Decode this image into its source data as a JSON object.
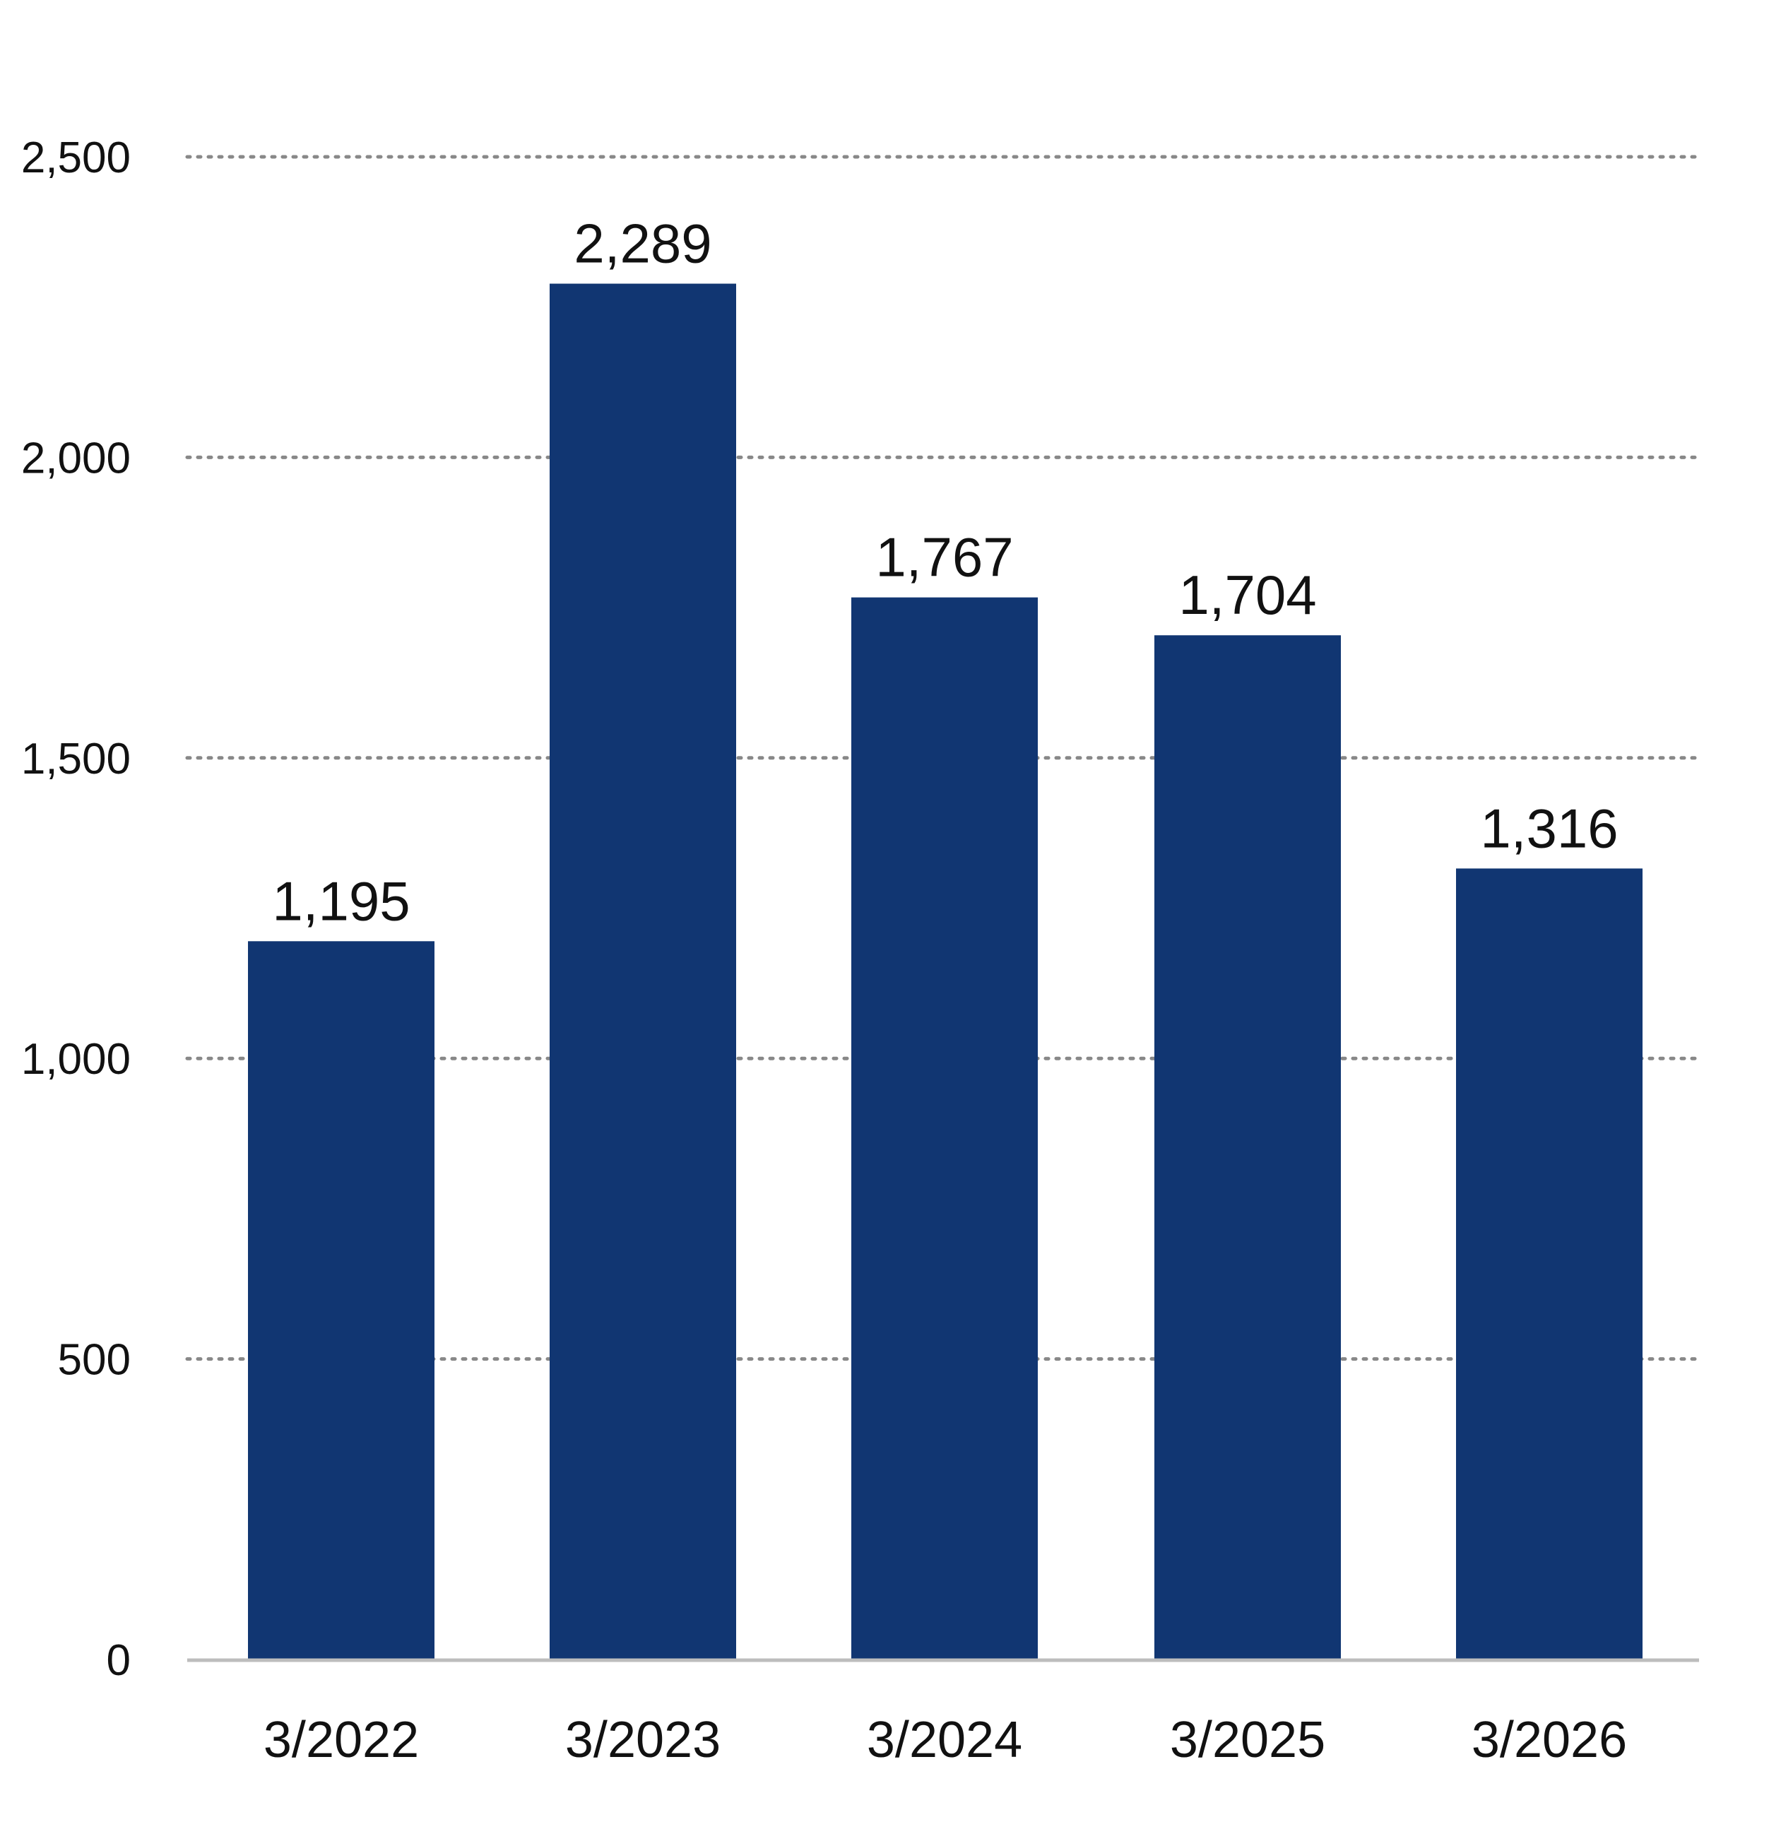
{
  "chart_data": {
    "type": "bar",
    "title": "",
    "xlabel": "",
    "ylabel": "",
    "categories": [
      "3/2022",
      "3/2023",
      "3/2024",
      "3/2025",
      "3/2026"
    ],
    "values": [
      1195,
      2289,
      1767,
      1704,
      1316
    ],
    "data_labels": [
      "1,195",
      "2,289",
      "1,767",
      "1,704",
      "1,316"
    ],
    "ylim": [
      0,
      2500
    ],
    "yticks": [
      0,
      500,
      1000,
      1500,
      2000,
      2500
    ],
    "ytick_labels": [
      "0",
      "500",
      "1,000",
      "1,500",
      "2,000",
      "2,500"
    ],
    "grid": "horizontal-dotted",
    "legend": "none",
    "colors": {
      "bar": "#113672",
      "grid": "#888888",
      "axis": "#bdbdbd",
      "text": "#111111"
    }
  }
}
